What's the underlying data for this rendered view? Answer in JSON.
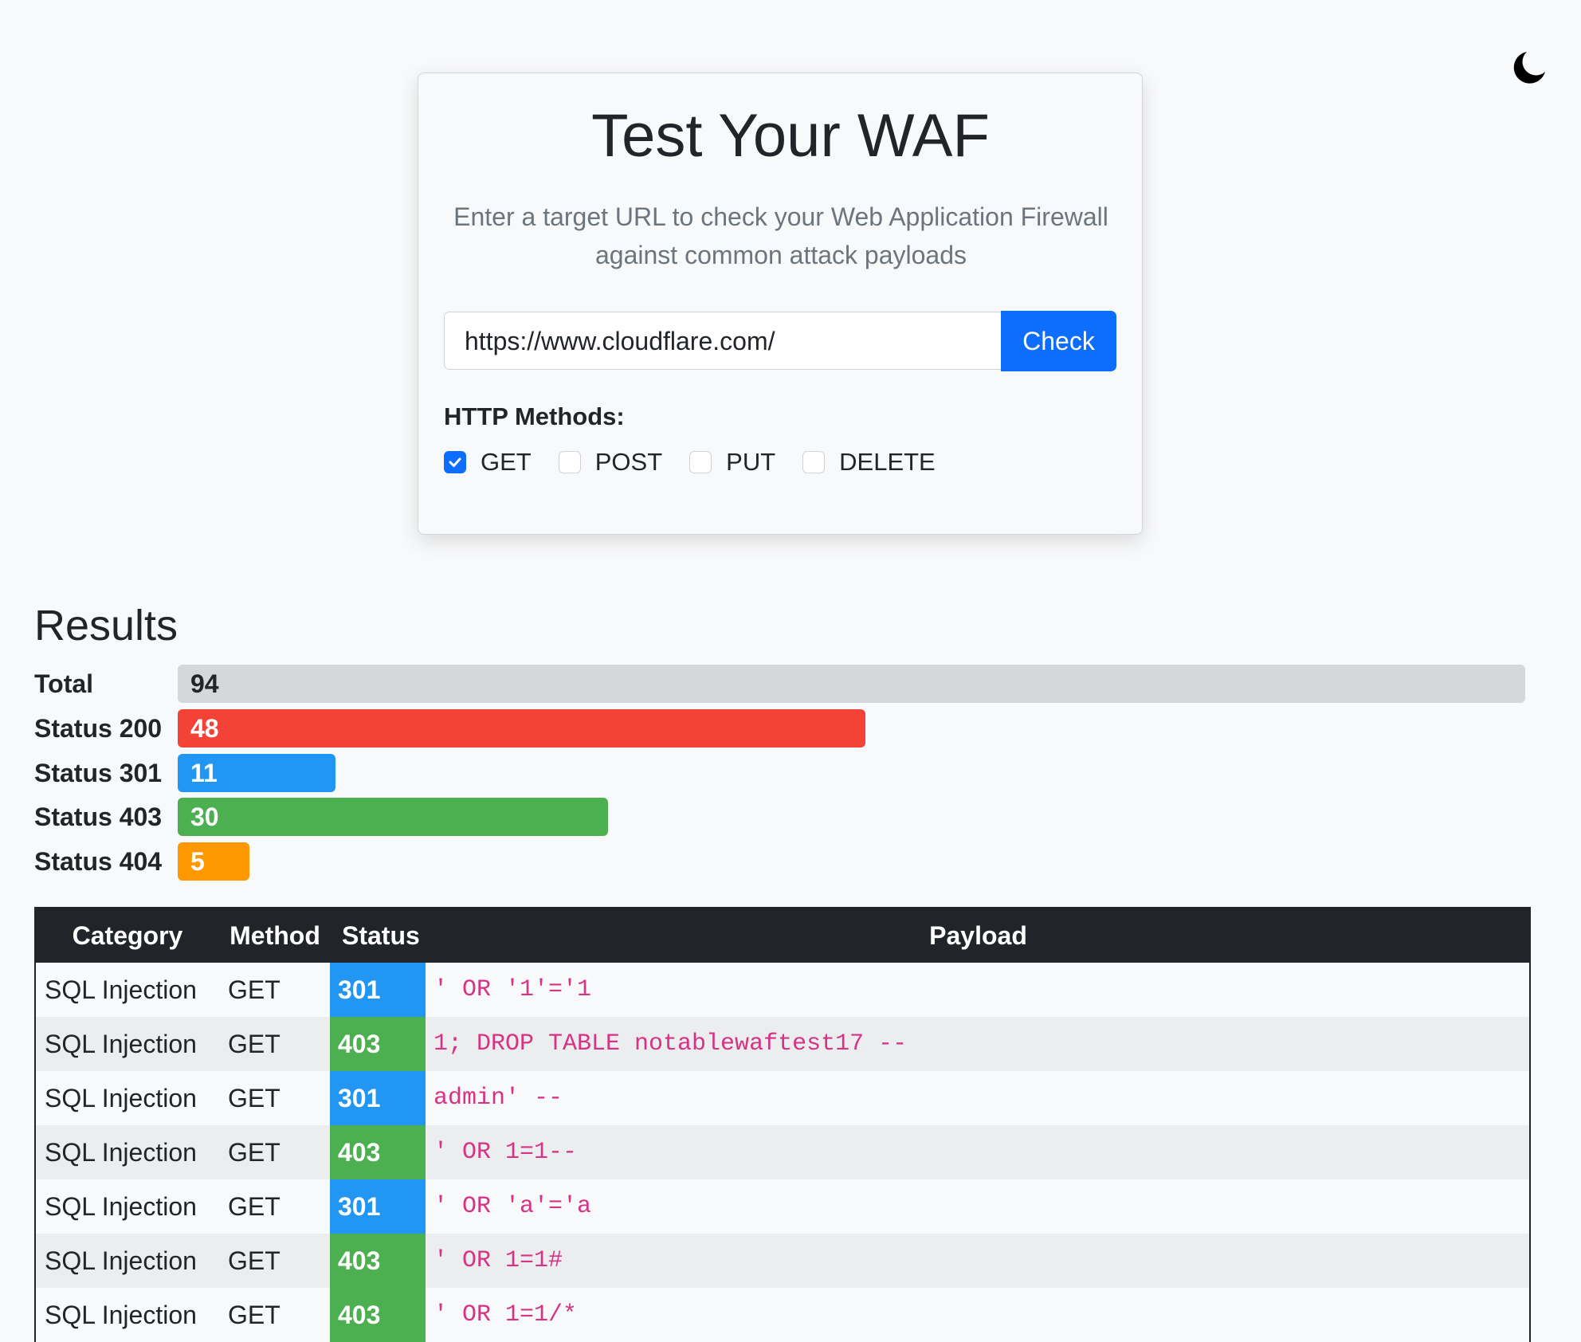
{
  "header": {
    "title": "Test Your WAF",
    "subtitle": "Enter a target URL to check your Web Application Firewall against common attack payloads",
    "input_value": "https://www.cloudflare.com/",
    "button": "Check",
    "methods_label": "HTTP Methods:",
    "methods": [
      {
        "label": "GET",
        "checked": true
      },
      {
        "label": "POST",
        "checked": false
      },
      {
        "label": "PUT",
        "checked": false
      },
      {
        "label": "DELETE",
        "checked": false
      }
    ]
  },
  "results": {
    "title": "Results",
    "bars": [
      {
        "label": "Total",
        "value": 94,
        "color": "#d6d7d9"
      },
      {
        "label": "Status 200",
        "value": 48,
        "color": "#f44336"
      },
      {
        "label": "Status 301",
        "value": 11,
        "color": "#2196f3"
      },
      {
        "label": "Status 403",
        "value": 30,
        "color": "#4caf50"
      },
      {
        "label": "Status 404",
        "value": 5,
        "color": "#ff9800"
      }
    ],
    "table": {
      "columns": [
        "Category",
        "Method",
        "Status",
        "Payload"
      ],
      "rows": [
        [
          "SQL Injection",
          "GET",
          "301",
          "' OR '1'='1"
        ],
        [
          "SQL Injection",
          "GET",
          "403",
          "1; DROP TABLE notablewaftest17 --"
        ],
        [
          "SQL Injection",
          "GET",
          "301",
          "admin' --"
        ],
        [
          "SQL Injection",
          "GET",
          "403",
          "' OR 1=1--"
        ],
        [
          "SQL Injection",
          "GET",
          "301",
          "' OR 'a'='a"
        ],
        [
          "SQL Injection",
          "GET",
          "403",
          "' OR 1=1#"
        ],
        [
          "SQL Injection",
          "GET",
          "403",
          "' OR 1=1/*"
        ]
      ]
    }
  }
}
